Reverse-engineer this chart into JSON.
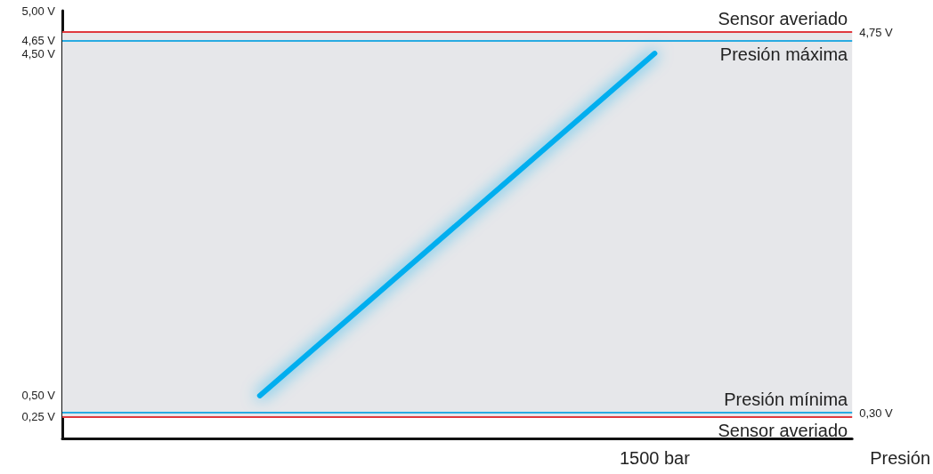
{
  "chart_data": {
    "type": "line",
    "xlabel": "Presión",
    "categories": [
      null,
      "1500 bar"
    ],
    "series": [
      {
        "color": "#00aeef",
        "values": [
          0.5,
          4.5
        ]
      }
    ],
    "ylim": [
      0,
      5
    ],
    "yticks": [
      {
        "value": 0.25,
        "label": "0,25 V"
      },
      {
        "value": 0.5,
        "label": "0,50 V"
      },
      {
        "value": 4.5,
        "label": "4,50 V"
      },
      {
        "value": 4.65,
        "label": "4,65 V"
      },
      {
        "value": 5,
        "label": "5,00 V"
      }
    ],
    "y2lim": [
      0,
      5
    ],
    "y2ticks": [
      {
        "value": 0.3,
        "label": "0,30 V"
      },
      {
        "value": 4.75,
        "label": "4,75 V"
      }
    ],
    "ref_lines": [
      {
        "axis": "y",
        "value": 4.75,
        "label": "Sensor averiado",
        "color": "#e0393e"
      },
      {
        "axis": "y",
        "value": 4.65,
        "label": "Presión máxima",
        "color": "#29abe2"
      },
      {
        "axis": "y",
        "value": 0.3,
        "label": "Presión mínima",
        "color": "#29abe2"
      },
      {
        "axis": "y",
        "value": 0.25,
        "label": "Sensor averiado",
        "color": "#e0393e"
      }
    ],
    "bands": [
      {
        "axis": "y",
        "from": 0.25,
        "to": 4.75,
        "color": "#e6e7ea"
      }
    ],
    "grid": false,
    "marker": "none",
    "line_style": "solid"
  }
}
